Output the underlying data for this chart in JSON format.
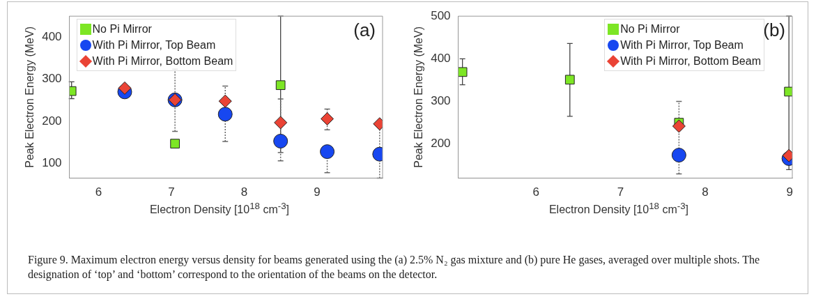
{
  "chart_data": [
    {
      "type": "scatter",
      "xlabel": "Electron Density [10$^{18}$ cm$^{-3}$]",
      "ylabel": "Peak Electron Energy (MeV)",
      "xlim": [
        5.6,
        9.9
      ],
      "xticks": [
        6,
        7,
        8,
        9
      ],
      "ylim": [
        65,
        450
      ],
      "yticks": [
        100,
        200,
        300,
        400
      ],
      "grid": false,
      "legend": "top left",
      "annotations": [
        "(a)"
      ],
      "series": [
        {
          "name": "No Pi Mirror",
          "color": "#7de625",
          "marker": "square",
          "x": [
            5.63,
            7.05,
            8.5
          ],
          "values": [
            272,
            147,
            286
          ],
          "errors": [
            [
              254,
              294
            ],
            [
              140,
              155
            ],
            [
              126,
              450
            ]
          ]
        },
        {
          "name": "With Pi Mirror, Top Beam",
          "color": "#1747f0",
          "marker": "circle",
          "x": [
            6.36,
            7.05,
            7.74,
            8.5,
            9.14,
            9.86
          ],
          "values": [
            270,
            251,
            217,
            153,
            128,
            122
          ],
          "errors": [
            null,
            [
              176,
              324
            ],
            [
              152,
              284
            ],
            [
              106,
              253
            ],
            [
              78,
              128
            ],
            [
              65,
              190
            ]
          ]
        },
        {
          "name": "With Pi Mirror, Bottom Beam",
          "color": "#ea4335",
          "marker": "diamond",
          "x": [
            6.36,
            7.05,
            7.74,
            8.5,
            9.14,
            9.86
          ],
          "values": [
            279,
            251,
            248,
            197,
            206,
            194
          ],
          "errors": [
            null,
            null,
            null,
            null,
            [
              180,
              229
            ],
            null
          ]
        }
      ]
    },
    {
      "type": "scatter",
      "xlabel": "Electron Density [10$^{18}$ cm$^{-3}$]",
      "ylabel": "Peak Electron Energy (MeV)",
      "xlim": [
        5.08,
        9.03
      ],
      "xticks": [
        6,
        7,
        8,
        9
      ],
      "ylim": [
        120,
        500
      ],
      "yticks": [
        200,
        300,
        400,
        500
      ],
      "grid": false,
      "legend": "top right",
      "annotations": [
        "(b)",
        "Figure 9. Maximum electron energy versus density for beams generated using the (a) 2.5% N₂ gas mixture and (b) pure He gases, averaged over multiple shots. The designation of ‘top’ and ‘bottom’ correspond to the orientation of the beams on the detector."
      ],
      "series": [
        {
          "name": "No Pi Mirror",
          "color": "#7de625",
          "marker": "square",
          "x": [
            5.13,
            6.4,
            7.69,
            8.99
          ],
          "values": [
            369,
            351,
            250,
            323
          ],
          "errors": [
            [
              339,
              400
            ],
            [
              265,
              436
            ],
            null,
            [
              140,
              500
            ]
          ]
        },
        {
          "name": "With Pi Mirror, Top Beam",
          "color": "#1747f0",
          "marker": "circle",
          "x": [
            7.69,
            8.99
          ],
          "values": [
            174,
            166
          ],
          "errors": [
            [
              130,
              300
            ],
            null
          ]
        },
        {
          "name": "With Pi Mirror, Bottom Beam",
          "color": "#ea4335",
          "marker": "diamond",
          "x": [
            7.69,
            8.99
          ],
          "values": [
            242,
            173
          ]
        }
      ]
    }
  ]
}
